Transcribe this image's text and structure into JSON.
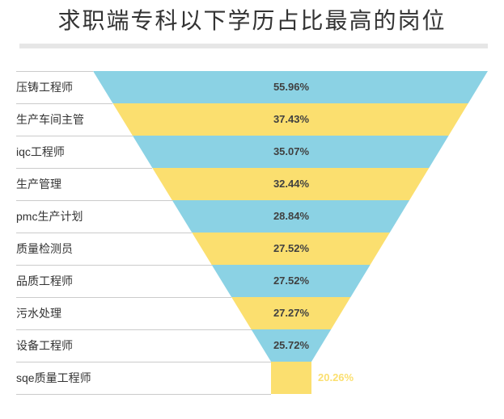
{
  "title": "求职端专科以下学历占比最高的岗位",
  "colors": {
    "blue": "#8BD2E4",
    "yellow": "#FBDF6F",
    "title_text": "#333333",
    "divider": "#E6E6E6",
    "grid_line": "#CBCBCB",
    "category_text": "#333333",
    "value_text": "#404040",
    "outside_value_text": "#FBDF6F",
    "background": "#FFFFFF"
  },
  "chart_data": {
    "type": "funnel",
    "title": "求职端专科以下学历占比最高的岗位",
    "orientation": "widest-at-top",
    "legend_position": "none",
    "grid": "left-row-separators",
    "categories": [
      "压铸工程师",
      "生产车间主管",
      "iqc工程师",
      "生产管理",
      "pmc生产计划",
      "质量检测员",
      "品质工程师",
      "污水处理",
      "设备工程师",
      "sqe质量工程师"
    ],
    "values": [
      55.96,
      37.43,
      35.07,
      32.44,
      28.84,
      27.52,
      27.52,
      27.27,
      25.72,
      20.26
    ],
    "value_labels": [
      "55.96%",
      "37.43%",
      "35.07%",
      "32.44%",
      "28.84%",
      "27.52%",
      "27.52%",
      "27.27%",
      "25.72%",
      "20.26%"
    ],
    "segment_colors": [
      "blue",
      "yellow",
      "blue",
      "yellow",
      "blue",
      "yellow",
      "blue",
      "yellow",
      "blue",
      "yellow"
    ],
    "last_label_outside": true
  }
}
